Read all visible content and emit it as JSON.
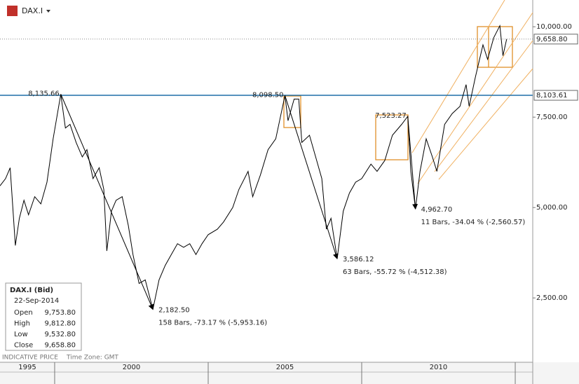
{
  "header": {
    "symbol": "DAX.I"
  },
  "footer": {
    "price_type": "INDICATIVE PRICE",
    "time_zone": "Time Zone: GMT"
  },
  "info_box": {
    "title": "DAX.I (Bid)",
    "date": "22-Sep-2014",
    "rows": [
      {
        "name": "Open",
        "value": "9,753.80"
      },
      {
        "name": "High",
        "value": "9,812.80"
      },
      {
        "name": "Low",
        "value": "9,532.80"
      },
      {
        "name": "Close",
        "value": "9,658.80"
      }
    ]
  },
  "chart_data": {
    "type": "line",
    "x": [
      1998.22,
      1998.4,
      1998.55,
      1998.72,
      1998.85,
      1999.0,
      1999.15,
      1999.35,
      1999.55,
      1999.75,
      1999.95,
      2000.2,
      2000.35,
      2000.5,
      2000.7,
      2000.9,
      2001.05,
      2001.25,
      2001.45,
      2001.6,
      2001.7,
      2001.85,
      2002.0,
      2002.2,
      2002.4,
      2002.55,
      2002.75,
      2002.95,
      2003.2,
      2003.4,
      2003.6,
      2003.8,
      2004.0,
      2004.2,
      2004.4,
      2004.6,
      2004.8,
      2005.0,
      2005.3,
      2005.5,
      2005.8,
      2006.0,
      2006.3,
      2006.45,
      2006.7,
      2006.95,
      2007.2,
      2007.5,
      2007.6,
      2007.8,
      2007.95,
      2008.05,
      2008.3,
      2008.5,
      2008.7,
      2008.85,
      2009.0,
      2009.2,
      2009.4,
      2009.6,
      2009.8,
      2010.0,
      2010.3,
      2010.5,
      2010.75,
      2011.0,
      2011.3,
      2011.5,
      2011.6,
      2011.75,
      2011.9,
      2012.1,
      2012.3,
      2012.45,
      2012.7,
      2012.95,
      2013.2,
      2013.4,
      2013.5,
      2013.7,
      2013.95,
      2014.1,
      2014.3,
      2014.5,
      2014.6,
      2014.72
    ],
    "series": [
      {
        "name": "DAX.I",
        "color": "#000000",
        "values": [
          5600,
          5800,
          6100,
          3950,
          4700,
          5200,
          4800,
          5300,
          5100,
          5700,
          6900,
          8135.66,
          7200,
          7300,
          6800,
          6400,
          6600,
          5800,
          6100,
          5500,
          3800,
          4900,
          5200,
          5300,
          4500,
          3700,
          2900,
          3000,
          2182.5,
          3000,
          3400,
          3700,
          4000,
          3900,
          4000,
          3700,
          4000,
          4250,
          4400,
          4600,
          5000,
          5500,
          6000,
          5300,
          5900,
          6600,
          6900,
          8098.5,
          7400,
          8000,
          8000,
          6800,
          7000,
          6400,
          5800,
          4400,
          4700,
          3586.12,
          4900,
          5400,
          5700,
          5800,
          6200,
          6000,
          6300,
          7000,
          7300,
          7523.27,
          6000,
          4962.7,
          6000,
          6900,
          6400,
          6000,
          7300,
          7600,
          7800,
          8400,
          7800,
          8600,
          9500,
          9100,
          9700,
          10029,
          9200,
          9658.8
        ]
      }
    ],
    "xlim": [
      1998.22,
      2015.57
    ],
    "xticks": [
      1995,
      2000,
      2005,
      2010
    ],
    "ylim": [
      720,
      10740
    ],
    "yticks": [
      {
        "value": 2500,
        "label": "2,500.00"
      },
      {
        "value": 5000,
        "label": "5,000.00"
      },
      {
        "value": 7500,
        "label": "7,500.00"
      },
      {
        "value": 10000,
        "label": "10,000.00"
      }
    ],
    "lines": [
      {
        "value": 9658.8,
        "label": "9,658.80",
        "color": "#8a8a8a",
        "style": "dotted"
      },
      {
        "value": 8103.61,
        "label": "8,103.61",
        "color": "#1f6fa8",
        "style": "solid"
      }
    ],
    "swings": [
      {
        "x": 2000.2,
        "value": 8135.66,
        "label": "8,135.66"
      },
      {
        "x": 2003.2,
        "value": 2182.5,
        "label": "2,182.50"
      },
      {
        "x": 2007.5,
        "value": 8098.5,
        "label": "8,098.50"
      },
      {
        "x": 2009.2,
        "value": 3586.12,
        "label": "3,586.12"
      },
      {
        "x": 2011.5,
        "value": 7523.27,
        "label": "7,523.27"
      },
      {
        "x": 2011.75,
        "value": 4962.7,
        "label": "4,962.70"
      }
    ],
    "swing_stats": [
      "158 Bars, -73.17 % (-5,953.16)",
      "63 Bars, -55.72 % (-4,512.38)",
      "11 Bars, -34.04 % (-2,560.57)"
    ]
  }
}
